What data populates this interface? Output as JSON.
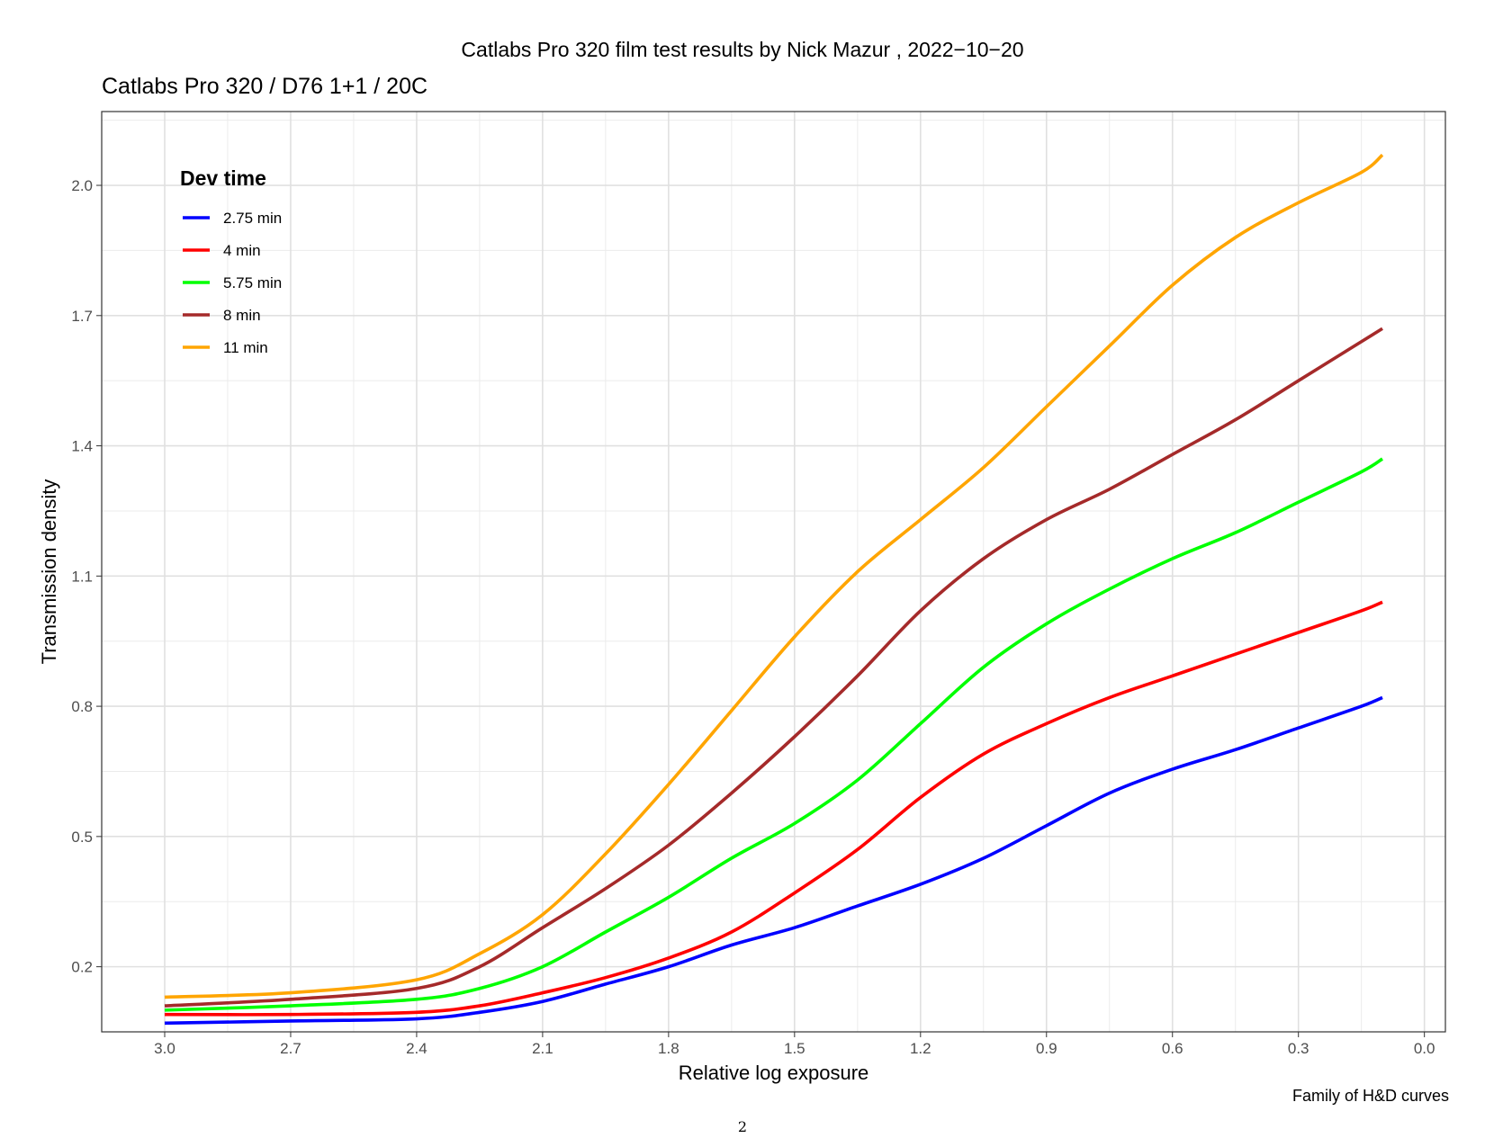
{
  "figure": {
    "title": "Catlabs Pro 320 film test results by Nick Mazur , 2022−10−20",
    "caption": "Family of H&D curves",
    "page_number": "2"
  },
  "chart_data": {
    "type": "line",
    "title": "Catlabs Pro 320 / D76 1+1 / 20C",
    "xlabel": "Relative log exposure",
    "ylabel": "Transmission density",
    "xlim": [
      3.15,
      -0.05
    ],
    "ylim": [
      0.05,
      2.17
    ],
    "x_reversed": true,
    "x_ticks": [
      3.0,
      2.7,
      2.4,
      2.1,
      1.8,
      1.5,
      1.2,
      0.9,
      0.6,
      0.3,
      0.0
    ],
    "x_tick_labels": [
      "3.0",
      "2.7",
      "2.4",
      "2.1",
      "1.8",
      "1.5",
      "1.2",
      "0.9",
      "0.6",
      "0.3",
      "0.0"
    ],
    "y_ticks": [
      0.2,
      0.5,
      0.8,
      1.1,
      1.4,
      1.7,
      2.0
    ],
    "y_tick_labels": [
      "0.2",
      "0.5",
      "0.8",
      "1.1",
      "1.4",
      "1.7",
      "2.0"
    ],
    "grid": true,
    "legend": {
      "title": "Dev time",
      "position": "top-left"
    },
    "x": [
      3.0,
      2.7,
      2.4,
      2.25,
      2.1,
      1.95,
      1.8,
      1.65,
      1.5,
      1.35,
      1.2,
      1.05,
      0.9,
      0.75,
      0.6,
      0.45,
      0.3,
      0.15,
      0.1
    ],
    "series": [
      {
        "name": "2.75 min",
        "color": "#0000ff",
        "values": [
          0.07,
          0.075,
          0.08,
          0.095,
          0.12,
          0.16,
          0.2,
          0.25,
          0.29,
          0.34,
          0.39,
          0.45,
          0.525,
          0.6,
          0.655,
          0.7,
          0.75,
          0.8,
          0.82
        ]
      },
      {
        "name": "4 min",
        "color": "#ff0000",
        "values": [
          0.09,
          0.09,
          0.095,
          0.11,
          0.14,
          0.175,
          0.22,
          0.28,
          0.37,
          0.47,
          0.59,
          0.69,
          0.76,
          0.82,
          0.87,
          0.92,
          0.97,
          1.02,
          1.04
        ]
      },
      {
        "name": "5.75 min",
        "color": "#00ff00",
        "values": [
          0.1,
          0.11,
          0.125,
          0.15,
          0.2,
          0.28,
          0.36,
          0.45,
          0.53,
          0.63,
          0.76,
          0.89,
          0.99,
          1.07,
          1.14,
          1.2,
          1.27,
          1.34,
          1.37
        ]
      },
      {
        "name": "8 min",
        "color": "#a52a2a",
        "values": [
          0.11,
          0.125,
          0.15,
          0.2,
          0.29,
          0.38,
          0.48,
          0.6,
          0.73,
          0.87,
          1.02,
          1.14,
          1.23,
          1.3,
          1.38,
          1.46,
          1.55,
          1.64,
          1.67
        ]
      },
      {
        "name": "11 min",
        "color": "#ffa500",
        "values": [
          0.13,
          0.14,
          0.17,
          0.23,
          0.32,
          0.46,
          0.62,
          0.79,
          0.96,
          1.11,
          1.23,
          1.35,
          1.49,
          1.63,
          1.77,
          1.88,
          1.96,
          2.03,
          2.07
        ]
      }
    ]
  }
}
